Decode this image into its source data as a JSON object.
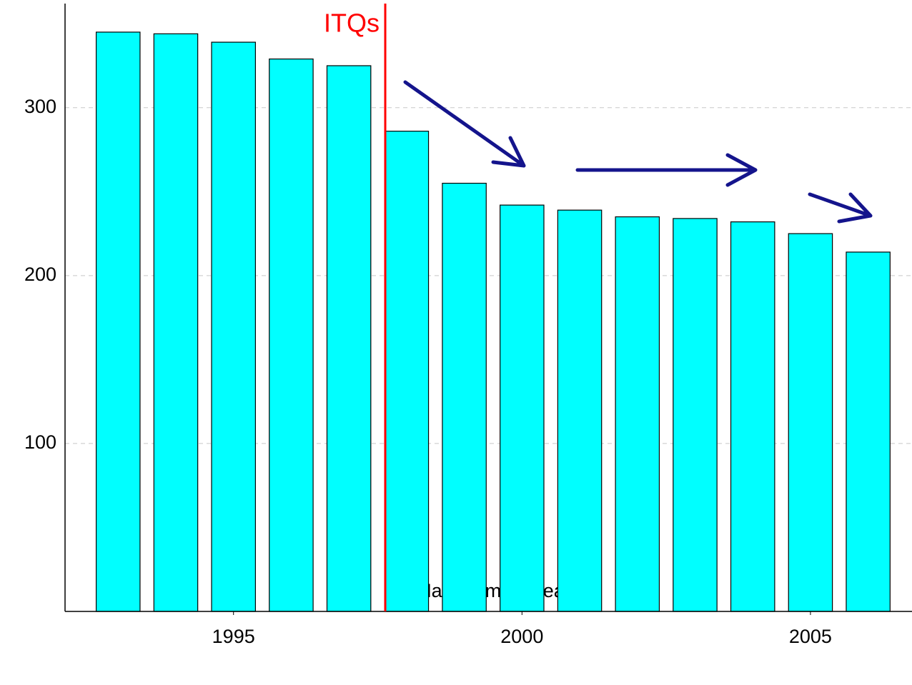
{
  "chart_data": {
    "type": "bar",
    "x_label": "Management year",
    "x": [
      1993,
      1994,
      1995,
      1996,
      1997,
      1998,
      1999,
      2000,
      2001,
      2002,
      2003,
      2004,
      2005,
      2006
    ],
    "values": [
      345,
      344,
      339,
      329,
      325,
      286,
      255,
      242,
      239,
      235,
      234,
      232,
      225,
      214
    ],
    "color": "#00ffff",
    "xlim": [
      1992.08,
      2006.76
    ],
    "xticks": [
      1995,
      2000,
      2005
    ],
    "ylim": [
      0,
      362
    ],
    "yticks": [
      100,
      200,
      300
    ],
    "grid": true,
    "annotation": {
      "text": "ITQs",
      "x": 1997.63,
      "color": "#ff0000"
    }
  }
}
